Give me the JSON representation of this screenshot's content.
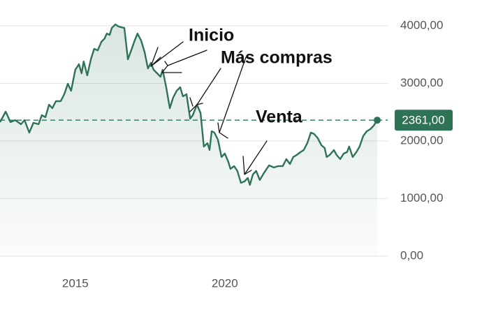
{
  "chart_data": {
    "type": "line",
    "color": "#2e7356",
    "x": [
      2012.48,
      2012.67,
      2012.83,
      2012.99,
      2013.18,
      2013.3,
      2013.46,
      2013.6,
      2013.77,
      2013.88,
      2014.0,
      2014.12,
      2014.23,
      2014.35,
      2014.51,
      2014.63,
      2014.75,
      2014.86,
      2015.0,
      2015.12,
      2015.21,
      2015.28,
      2015.4,
      2015.52,
      2015.63,
      2015.75,
      2015.87,
      2015.98,
      2016.05,
      2016.15,
      2016.22,
      2016.34,
      2016.45,
      2016.64,
      2016.76,
      2016.87,
      2016.97,
      2017.08,
      2017.2,
      2017.32,
      2017.43,
      2017.53,
      2017.62,
      2017.74,
      2017.85,
      2017.92,
      2018.04,
      2018.16,
      2018.27,
      2018.39,
      2018.51,
      2018.6,
      2018.72,
      2018.84,
      2018.93,
      2019.07,
      2019.19,
      2019.3,
      2019.42,
      2019.49,
      2019.56,
      2019.65,
      2019.77,
      2019.89,
      2020.0,
      2020.12,
      2020.19,
      2020.31,
      2020.42,
      2020.54,
      2020.66,
      2020.77,
      2020.84,
      2020.94,
      2021.05,
      2021.17,
      2021.31,
      2021.48,
      2021.64,
      2021.78,
      2021.94,
      2022.06,
      2022.18,
      2022.29,
      2022.41,
      2022.53,
      2022.64,
      2022.76,
      2022.88,
      2022.99,
      2023.11,
      2023.23,
      2023.34,
      2023.41,
      2023.51,
      2023.65,
      2023.74,
      2023.86,
      2023.98,
      2024.09,
      2024.16,
      2024.28,
      2024.4,
      2024.51,
      2024.63,
      2024.75,
      2024.87,
      2024.98,
      2025.1
    ],
    "values": [
      2327,
      2509,
      2327,
      2363,
      2291,
      2363,
      2145,
      2315,
      2291,
      2448,
      2412,
      2630,
      2569,
      2691,
      2691,
      2812,
      2994,
      2872,
      3236,
      3333,
      3175,
      3381,
      3139,
      3418,
      3600,
      3575,
      3721,
      3781,
      3866,
      3842,
      3963,
      4024,
      3987,
      3963,
      3418,
      3575,
      3721,
      3866,
      3745,
      3539,
      3260,
      3357,
      3236,
      3175,
      3115,
      3236,
      2933,
      2569,
      2751,
      2872,
      2933,
      2775,
      2812,
      2388,
      2448,
      2630,
      2485,
      1903,
      1963,
      1842,
      2169,
      2145,
      2024,
      1721,
      1782,
      1636,
      1515,
      1563,
      1479,
      1273,
      1297,
      1357,
      1236,
      1418,
      1479,
      1321,
      1442,
      1576,
      1539,
      1563,
      1563,
      1685,
      1600,
      1721,
      1757,
      1806,
      1842,
      1963,
      2145,
      2121,
      2048,
      1927,
      1879,
      1721,
      1757,
      1842,
      1757,
      1685,
      1782,
      1806,
      1903,
      1721,
      1806,
      1903,
      2085,
      2169,
      2206,
      2266,
      2361
    ],
    "xlim": [
      2012.48,
      2025.45
    ],
    "xticks": [
      2015,
      2020
    ],
    "ylim": [
      0,
      4000
    ],
    "yticks": [
      {
        "value": 0,
        "label": "0,00"
      },
      {
        "value": 1000,
        "label": "1000,00"
      },
      {
        "value": 2000,
        "label": "2000,00"
      },
      {
        "value": 3000,
        "label": "3000,00"
      },
      {
        "value": 4000,
        "label": "4000,00"
      }
    ],
    "grid": true,
    "reference": {
      "value": 2361,
      "label": "2361,00"
    },
    "annotations": [
      "Inicio",
      "Más compras",
      "Venta"
    ]
  }
}
